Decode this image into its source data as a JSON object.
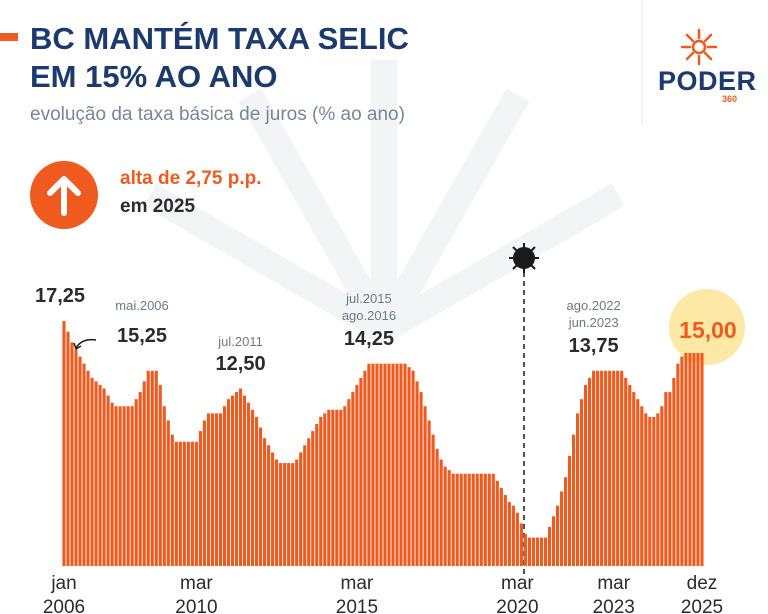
{
  "header": {
    "title": "BC MANTÉM TAXA SELIC EM 15% AO ANO",
    "subtitle": "evolução da taxa básica de juros (% ao ano)"
  },
  "callout": {
    "headline": "alta de 2,75 p.p.",
    "detail": "em 2025"
  },
  "logo": {
    "name": "PODER",
    "number": "360"
  },
  "chart_data": {
    "type": "bar",
    "color": "#ef5a1f",
    "categories": [
      "jan 2006",
      null,
      null,
      null,
      null,
      null,
      null,
      null,
      null,
      null,
      null,
      null,
      null,
      null,
      null,
      null,
      null,
      null,
      null,
      null,
      null,
      null,
      null,
      null,
      null,
      null,
      null,
      null,
      null,
      null,
      null,
      null,
      null,
      "mar 2010",
      null,
      null,
      null,
      null,
      null,
      null,
      null,
      null,
      null,
      null,
      null,
      null,
      null,
      null,
      null,
      null,
      null,
      null,
      null,
      null,
      null,
      null,
      null,
      null,
      null,
      null,
      null,
      null,
      null,
      null,
      null,
      null,
      null,
      null,
      null,
      null,
      null,
      null,
      null,
      "mar 2015",
      null,
      null,
      null,
      null,
      null,
      null,
      null,
      null,
      null,
      null,
      null,
      null,
      null,
      null,
      null,
      null,
      null,
      null,
      null,
      null,
      null,
      null,
      null,
      null,
      null,
      null,
      null,
      null,
      null,
      null,
      null,
      null,
      null,
      null,
      null,
      null,
      null,
      null,
      null,
      "mar 2020",
      null,
      null,
      null,
      null,
      null,
      null,
      null,
      null,
      null,
      null,
      null,
      null,
      null,
      null,
      null,
      null,
      null,
      null,
      null,
      null,
      null,
      null,
      null,
      "mar 2023",
      null,
      null,
      null,
      null,
      null,
      null,
      null,
      null,
      null,
      null,
      null,
      null,
      null,
      null,
      null,
      null,
      null,
      null,
      null,
      null,
      null,
      "dez 2025"
    ],
    "values": [
      17.25,
      16.5,
      15.75,
      15.25,
      14.75,
      14.25,
      13.75,
      13.25,
      13.0,
      12.75,
      12.5,
      12.0,
      11.5,
      11.25,
      11.25,
      11.25,
      11.25,
      11.25,
      11.75,
      12.25,
      13.0,
      13.75,
      13.75,
      13.75,
      12.75,
      11.25,
      10.25,
      9.25,
      8.75,
      8.75,
      8.75,
      8.75,
      8.75,
      8.75,
      9.5,
      10.25,
      10.75,
      10.75,
      10.75,
      10.75,
      11.25,
      11.75,
      12.0,
      12.25,
      12.5,
      12.0,
      11.5,
      11.0,
      10.5,
      9.75,
      9.0,
      8.5,
      8.0,
      7.5,
      7.25,
      7.25,
      7.25,
      7.25,
      7.5,
      8.0,
      8.5,
      9.0,
      9.5,
      10.0,
      10.5,
      10.75,
      11.0,
      11.0,
      11.0,
      11.0,
      11.25,
      11.75,
      12.25,
      12.75,
      13.25,
      13.75,
      14.25,
      14.25,
      14.25,
      14.25,
      14.25,
      14.25,
      14.25,
      14.25,
      14.25,
      14.25,
      14.0,
      13.75,
      13.0,
      12.25,
      11.25,
      10.25,
      9.25,
      8.25,
      7.5,
      7.0,
      6.75,
      6.5,
      6.5,
      6.5,
      6.5,
      6.5,
      6.5,
      6.5,
      6.5,
      6.5,
      6.5,
      6.5,
      6.0,
      5.5,
      5.0,
      4.5,
      4.25,
      3.75,
      3.0,
      2.25,
      2.0,
      2.0,
      2.0,
      2.0,
      2.0,
      2.75,
      3.5,
      4.25,
      5.25,
      6.25,
      7.75,
      9.25,
      10.75,
      11.75,
      12.75,
      13.25,
      13.75,
      13.75,
      13.75,
      13.75,
      13.75,
      13.75,
      13.75,
      13.75,
      13.25,
      12.75,
      12.25,
      11.75,
      11.25,
      10.75,
      10.5,
      10.5,
      10.75,
      11.25,
      12.25,
      12.25,
      13.25,
      14.25,
      14.75,
      15.0,
      15.0,
      15.0,
      15.0,
      15.0
    ],
    "value_labels": [
      "17,25",
      null,
      null,
      "15,25",
      null,
      null,
      null,
      null,
      null,
      null,
      null,
      null,
      null,
      null,
      null,
      null,
      null,
      null,
      null,
      null,
      null,
      null,
      null,
      null,
      null,
      null,
      null,
      null,
      null,
      null,
      null,
      null,
      null,
      null,
      null,
      null,
      null,
      null,
      null,
      null,
      null,
      null,
      null,
      null,
      "12,50",
      null,
      null,
      null,
      null,
      null,
      null,
      null,
      null,
      null,
      null,
      null,
      null,
      null,
      null,
      null,
      null,
      null,
      null,
      null,
      null,
      null,
      null,
      null,
      null,
      null,
      null,
      null,
      null,
      null,
      null,
      null,
      "14,25",
      null,
      null,
      null,
      null,
      null,
      null,
      null,
      null,
      null,
      null,
      null,
      null,
      null,
      null,
      null,
      null,
      null,
      null,
      null,
      null,
      null,
      null,
      null,
      null,
      null,
      null,
      null,
      null,
      null,
      null,
      null,
      null,
      null,
      null,
      null,
      null,
      null,
      null,
      null,
      null,
      null,
      null,
      null,
      null,
      null,
      null,
      null,
      null,
      null,
      null,
      null,
      null,
      null,
      null,
      null,
      "13,75",
      null,
      null,
      null,
      null,
      null,
      null,
      null,
      null,
      null,
      null,
      null,
      null,
      null,
      null,
      null,
      null,
      null,
      null,
      null,
      null,
      null,
      null,
      "15,00",
      null,
      null,
      null,
      null
    ],
    "notes": [
      null,
      null,
      null,
      "mai.2006",
      null,
      null,
      null,
      null,
      null,
      null,
      null,
      null,
      null,
      null,
      null,
      null,
      null,
      null,
      null,
      null,
      null,
      null,
      null,
      null,
      null,
      null,
      null,
      null,
      null,
      null,
      null,
      null,
      null,
      null,
      null,
      null,
      null,
      null,
      null,
      null,
      null,
      null,
      null,
      null,
      "jul.2011",
      null,
      null,
      null,
      null,
      null,
      null,
      null,
      null,
      null,
      null,
      null,
      null,
      null,
      null,
      null,
      null,
      null,
      null,
      null,
      null,
      null,
      null,
      null,
      null,
      null,
      null,
      null,
      null,
      null,
      null,
      null,
      "jul.2015 ago.2016",
      null,
      null,
      null,
      null,
      null,
      null,
      null,
      null,
      null,
      null,
      null,
      null,
      null,
      null,
      null,
      null,
      null,
      null,
      null,
      null,
      null,
      null,
      null,
      null,
      null,
      null,
      null,
      null,
      null,
      null,
      null,
      null,
      null,
      null,
      null,
      null,
      null,
      null,
      null,
      null,
      null,
      null,
      null,
      null,
      null,
      null,
      null,
      null,
      null,
      null,
      null,
      null,
      null,
      null,
      null,
      "ago.2022 jun.2023",
      null,
      null,
      null,
      null,
      null,
      null,
      null,
      null,
      null,
      null,
      null,
      null,
      null,
      null,
      null,
      null,
      null,
      null,
      null,
      null,
      null,
      null,
      null,
      null,
      null,
      null,
      null
    ]
  }
}
